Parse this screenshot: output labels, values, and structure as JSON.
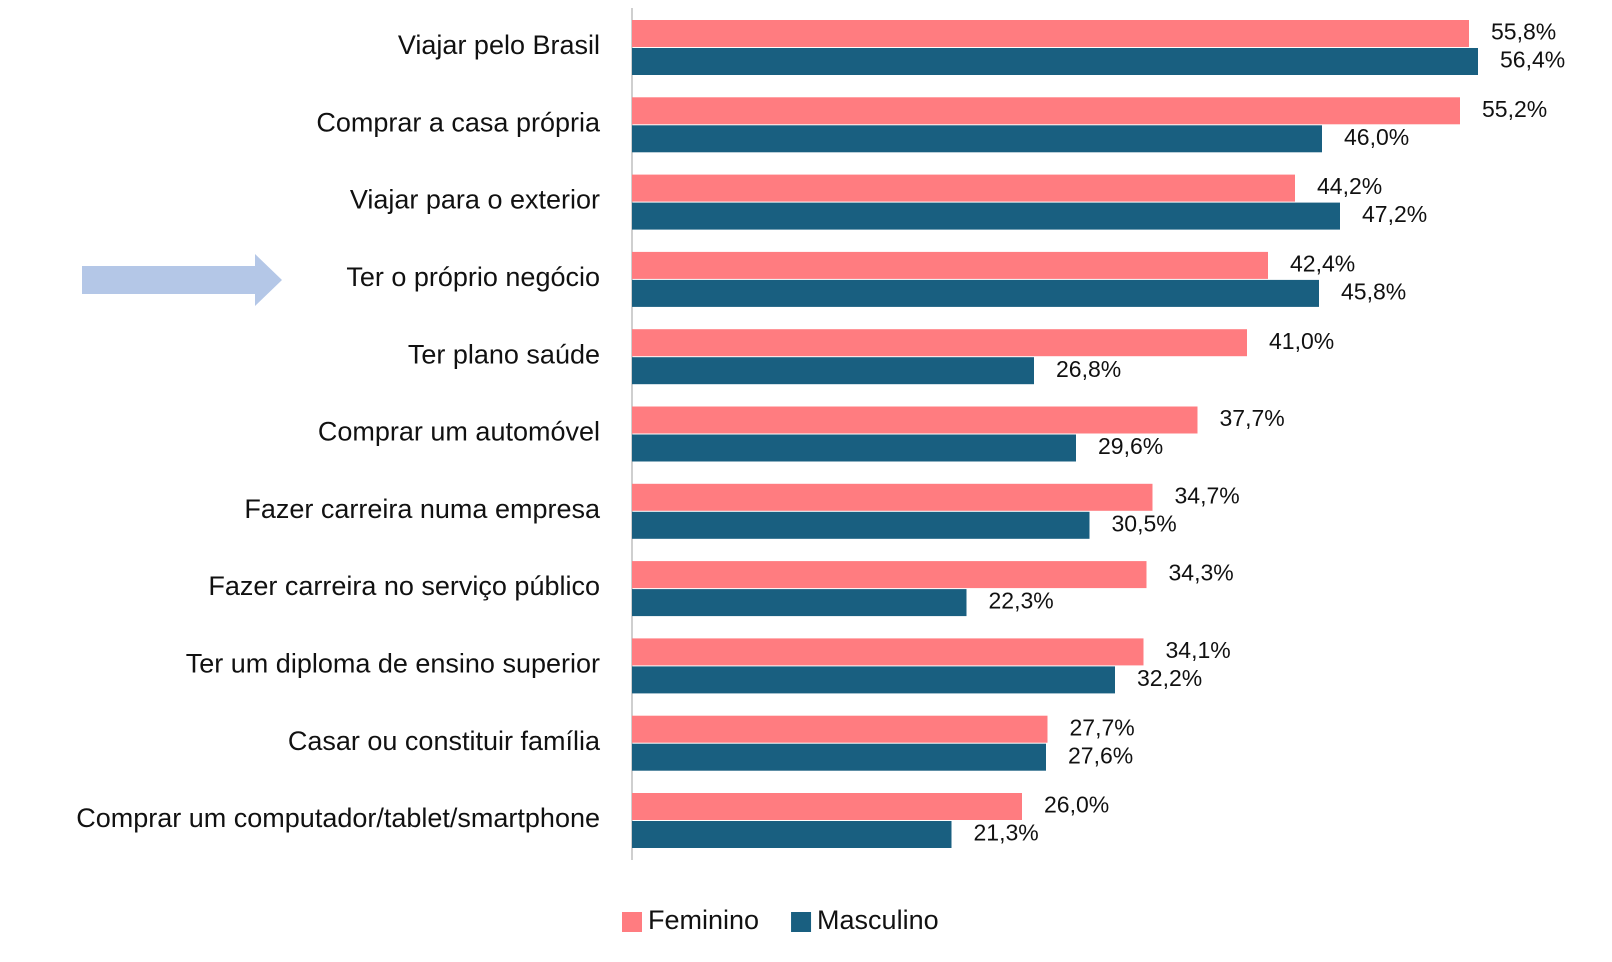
{
  "chart_data": {
    "type": "bar",
    "orientation": "horizontal",
    "categories": [
      "Viajar pelo Brasil",
      "Comprar a casa própria",
      "Viajar para o exterior",
      "Ter o próprio negócio",
      "Ter plano saúde",
      "Comprar um automóvel",
      "Fazer carreira numa empresa",
      "Fazer carreira no serviço público",
      "Ter um diploma de ensino superior",
      "Casar ou constituir família",
      "Comprar um computador/tablet/smartphone"
    ],
    "series": [
      {
        "name": "Feminino",
        "color": "#ff7c80",
        "values": [
          55.8,
          55.2,
          44.2,
          42.4,
          41.0,
          37.7,
          34.7,
          34.3,
          34.1,
          27.7,
          26.0
        ],
        "value_labels": [
          "55,8%",
          "55,2%",
          "44,2%",
          "42,4%",
          "41,0%",
          "37,7%",
          "34,7%",
          "34,3%",
          "34,1%",
          "27,7%",
          "26,0%"
        ]
      },
      {
        "name": "Masculino",
        "color": "#195f80",
        "values": [
          56.4,
          46.0,
          47.2,
          45.8,
          26.8,
          29.6,
          30.5,
          22.3,
          32.2,
          27.6,
          21.3
        ],
        "value_labels": [
          "56,4%",
          "46,0%",
          "47,2%",
          "45,8%",
          "26,8%",
          "29,6%",
          "30,5%",
          "22,3%",
          "32,2%",
          "27,6%",
          "21,3%"
        ]
      }
    ],
    "xlim": [
      0,
      60
    ],
    "legend": "bottom"
  }
}
